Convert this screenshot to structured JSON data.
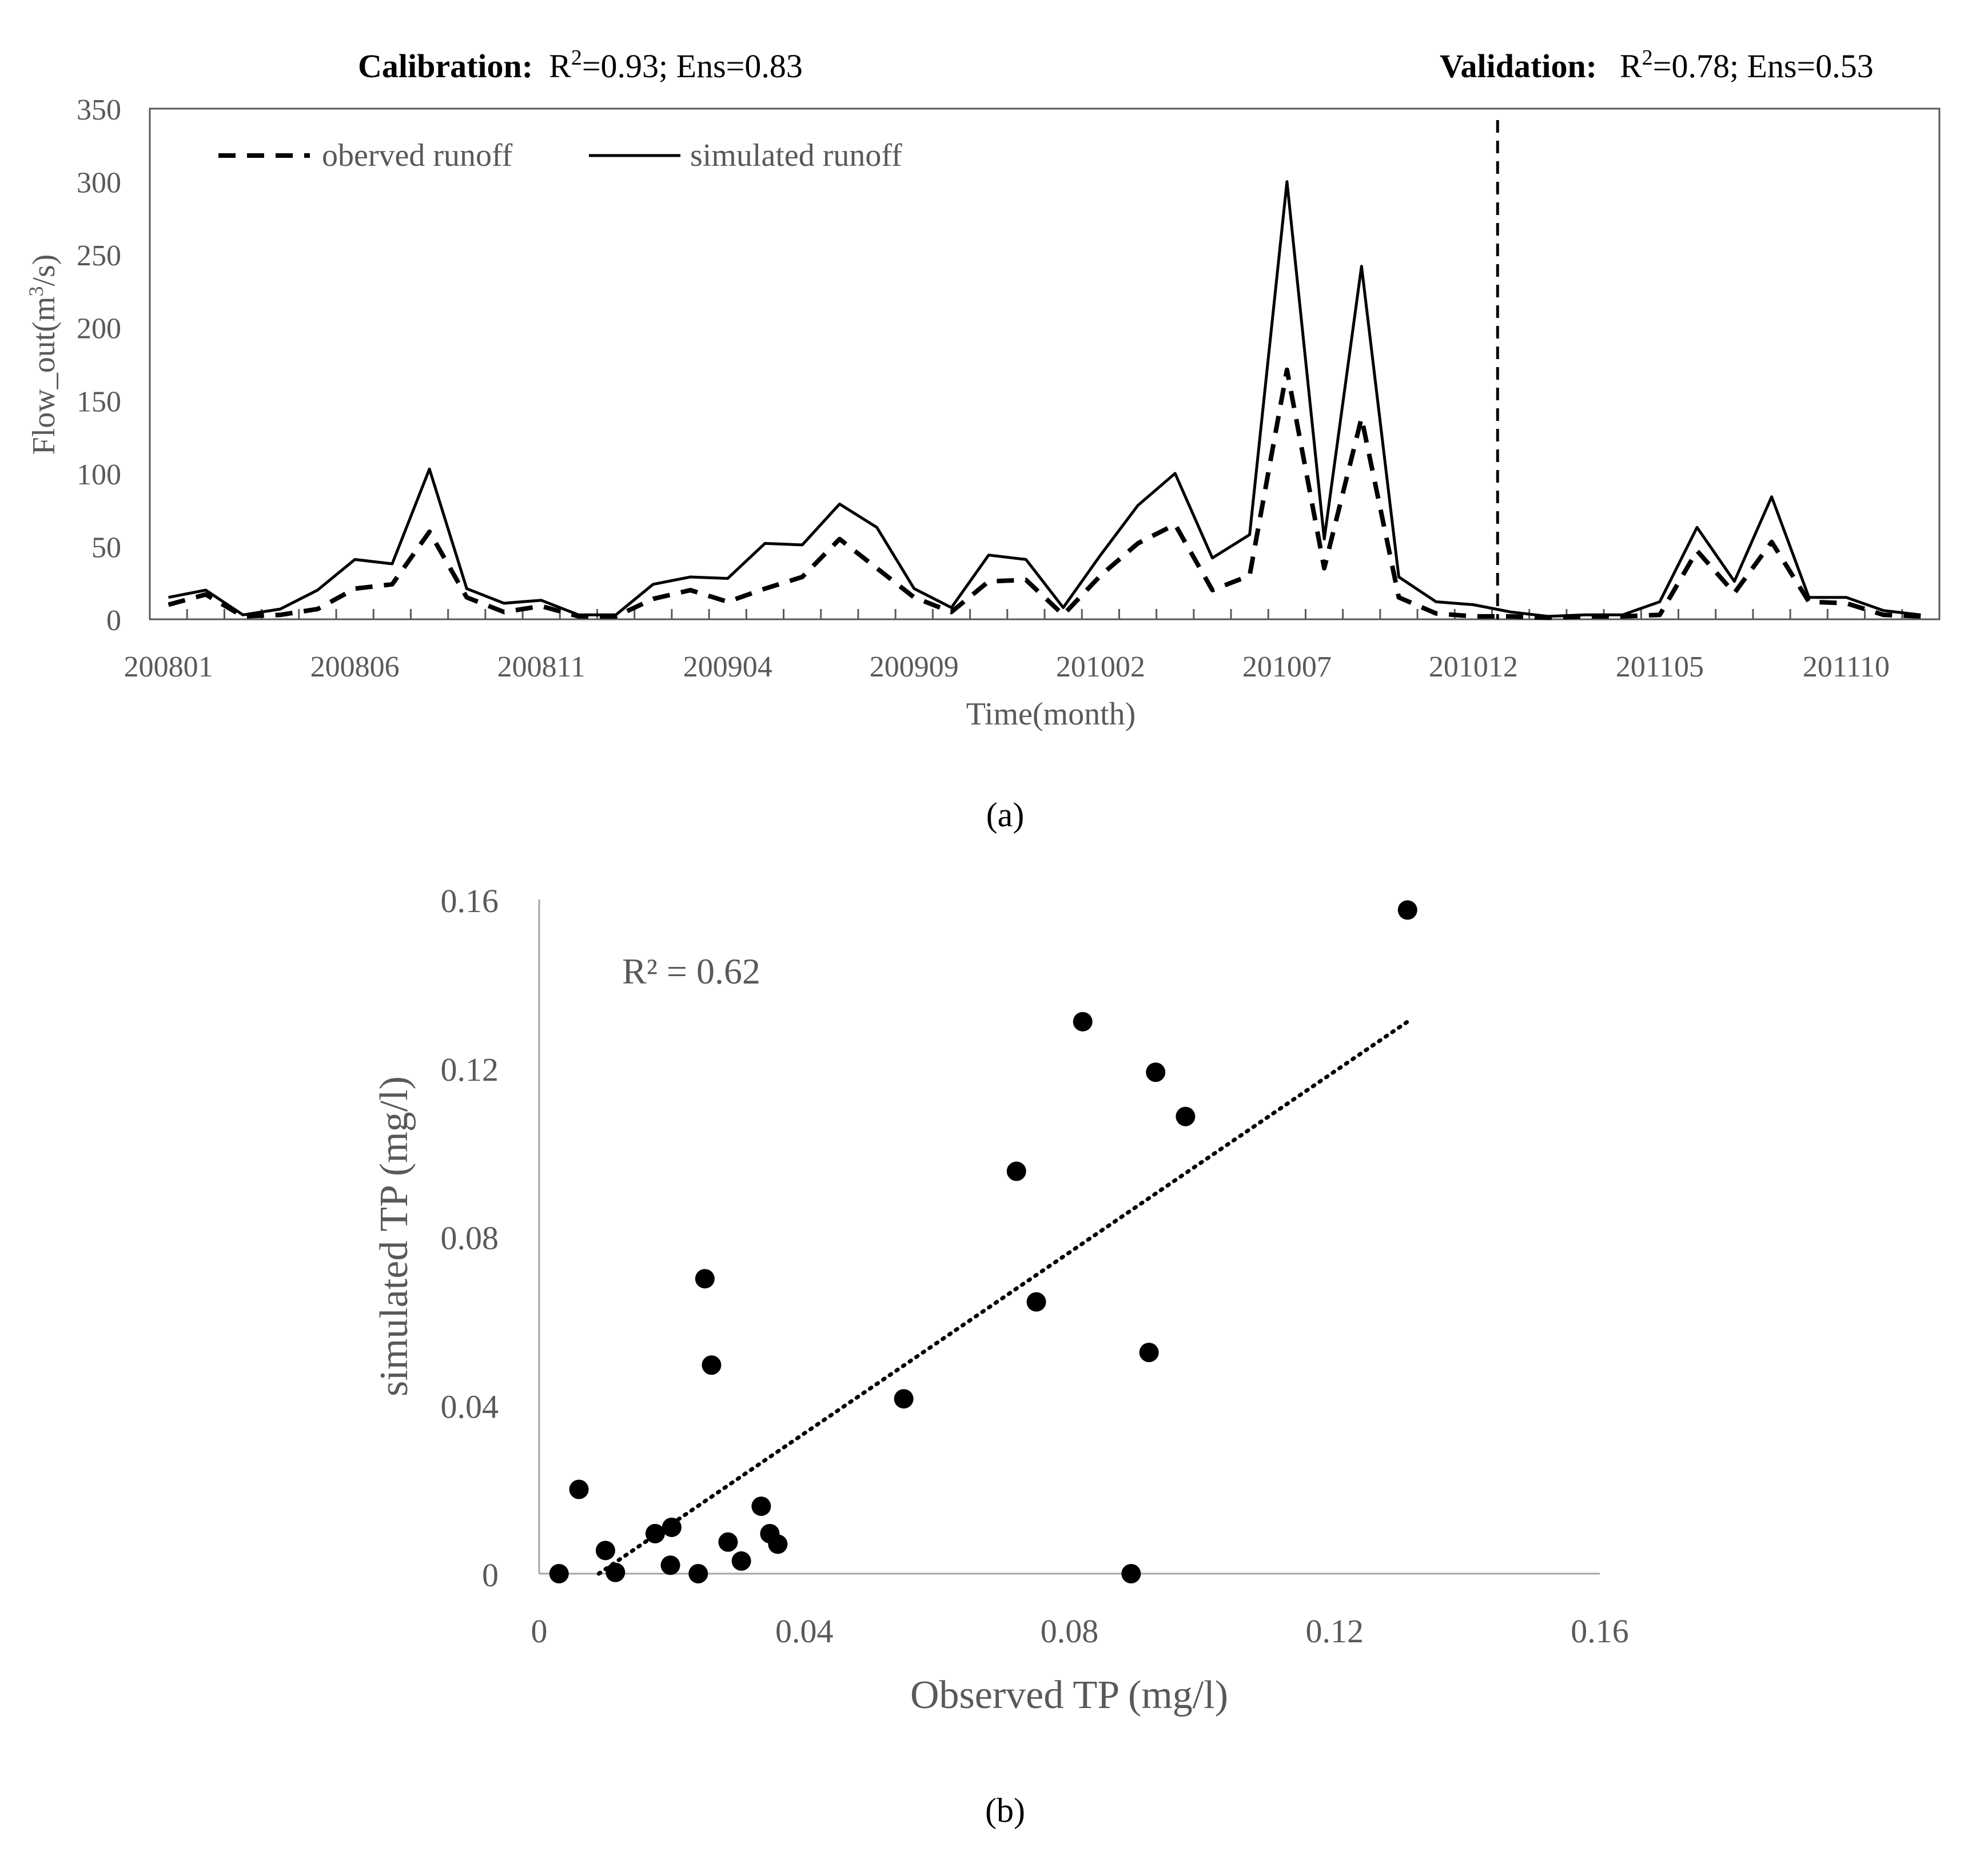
{
  "chart_data": [
    {
      "type": "line",
      "panel_label": "(a)",
      "title_left": {
        "bold": "Calibration:",
        "r2_prefix": "R",
        "r2_sup": "2",
        "rest": "=0.93; Ens=0.83"
      },
      "title_right": {
        "bold": "Validation:",
        "r2_prefix": "R",
        "r2_sup": "2",
        "rest": "=0.78; Ens=0.53"
      },
      "xlabel": "Time(month)",
      "ylabel": {
        "main": "Flow_out(m",
        "sup": "3",
        "tail": "/s)"
      },
      "ylim": [
        0,
        350
      ],
      "yticks": [
        "0",
        "50",
        "100",
        "150",
        "200",
        "250",
        "300",
        "350"
      ],
      "xtick_labels": [
        "200801",
        "200806",
        "200811",
        "200904",
        "200909",
        "201002",
        "201007",
        "201012",
        "201105",
        "201110"
      ],
      "xtick_label_positions": [
        0,
        5,
        10,
        15,
        20,
        25,
        30,
        35,
        40,
        45
      ],
      "n_months": 48,
      "divider_index": 36,
      "legend": {
        "observed": "oberved runoff",
        "simulated": "simulated runoff"
      },
      "series": [
        {
          "name": "oberved runoff",
          "style": "dashed",
          "values": [
            10,
            17,
            2,
            3,
            7,
            21,
            24,
            60,
            15,
            5,
            9,
            2,
            2,
            14,
            20,
            12,
            21,
            29,
            55,
            35,
            15,
            5,
            26,
            27,
            3,
            30,
            52,
            65,
            20,
            30,
            171,
            35,
            138,
            15,
            4,
            2,
            2,
            1,
            2,
            2,
            3,
            47,
            18,
            53,
            12,
            11,
            3,
            2
          ]
        },
        {
          "name": "simulated runoff",
          "style": "solid",
          "values": [
            15,
            20,
            3,
            7,
            20,
            41,
            38,
            103,
            21,
            11,
            13,
            3,
            3,
            24,
            29,
            28,
            52,
            51,
            79,
            63,
            21,
            8,
            44,
            41,
            8,
            44,
            78,
            100,
            42,
            58,
            300,
            55,
            242,
            29,
            12,
            10,
            5,
            2,
            3,
            3,
            12,
            63,
            26,
            84,
            15,
            15,
            6,
            3
          ]
        }
      ]
    },
    {
      "type": "scatter",
      "panel_label": "(b)",
      "xlabel": "Observed TP (mg/l)",
      "ylabel": "simulated TP (mg/l)",
      "xlim": [
        0,
        0.16
      ],
      "ylim": [
        0,
        0.16
      ],
      "xticks": [
        "0",
        "0.04",
        "0.08",
        "0.12",
        "0.16"
      ],
      "yticks": [
        "0",
        "0.04",
        "0.08",
        "0.12",
        "0.16"
      ],
      "annotation": "R² = 0.62",
      "trendline": {
        "style": "dotted",
        "x_start": 0.009,
        "y_start": 0.0,
        "x_end": 0.131,
        "y_end": 0.131
      },
      "points": [
        [
          0.003,
          0.0
        ],
        [
          0.006,
          0.02
        ],
        [
          0.01,
          0.0055
        ],
        [
          0.0115,
          0.0003
        ],
        [
          0.0175,
          0.0095
        ],
        [
          0.02,
          0.011
        ],
        [
          0.0198,
          0.002
        ],
        [
          0.024,
          0.0
        ],
        [
          0.025,
          0.07
        ],
        [
          0.026,
          0.0495
        ],
        [
          0.0285,
          0.0075
        ],
        [
          0.0305,
          0.003
        ],
        [
          0.0335,
          0.016
        ],
        [
          0.0348,
          0.0095
        ],
        [
          0.036,
          0.007
        ],
        [
          0.055,
          0.0415
        ],
        [
          0.072,
          0.0955
        ],
        [
          0.075,
          0.0645
        ],
        [
          0.082,
          0.131
        ],
        [
          0.0893,
          0.0
        ],
        [
          0.092,
          0.0525
        ],
        [
          0.093,
          0.119
        ],
        [
          0.0975,
          0.1085
        ],
        [
          0.131,
          0.1575
        ]
      ]
    }
  ]
}
